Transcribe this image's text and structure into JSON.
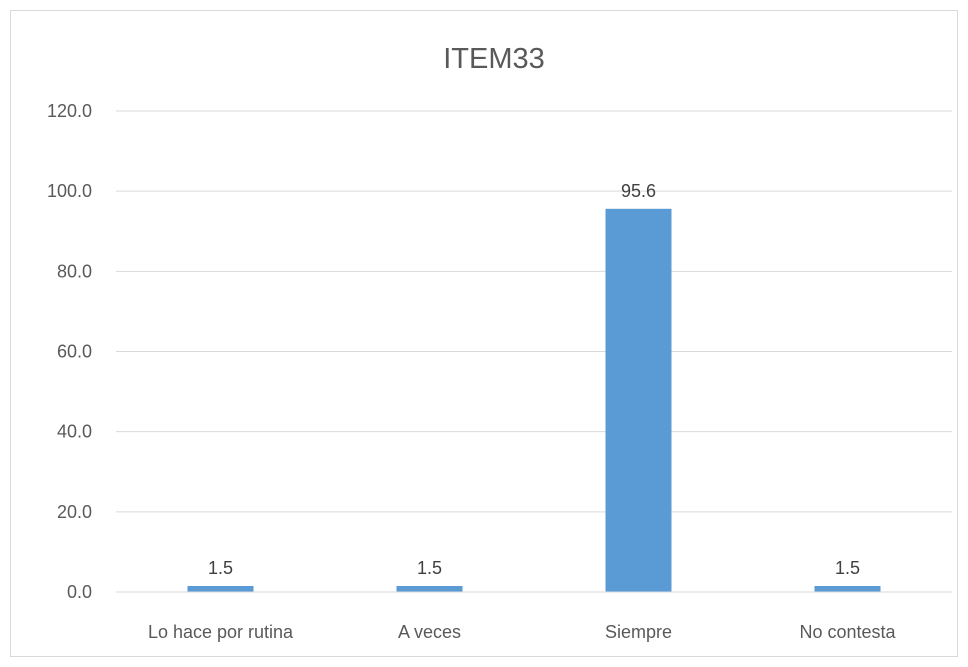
{
  "chart_data": {
    "type": "bar",
    "title": "ITEM33",
    "categories": [
      "Lo hace por rutina",
      "A veces",
      "Siempre",
      "No contesta"
    ],
    "values": [
      1.5,
      1.5,
      95.6,
      1.5
    ],
    "data_labels": [
      "1.5",
      "1.5",
      "95.6",
      "1.5"
    ],
    "y_ticks": [
      "0.0",
      "20.0",
      "40.0",
      "60.0",
      "80.0",
      "100.0",
      "120.0"
    ],
    "ylim": [
      0,
      120
    ],
    "xlabel": "",
    "ylabel": "",
    "grid": true,
    "legend": "none",
    "bar_color": "#5b9bd5",
    "grid_color": "#d9d9d9",
    "text_color": "#595959"
  }
}
